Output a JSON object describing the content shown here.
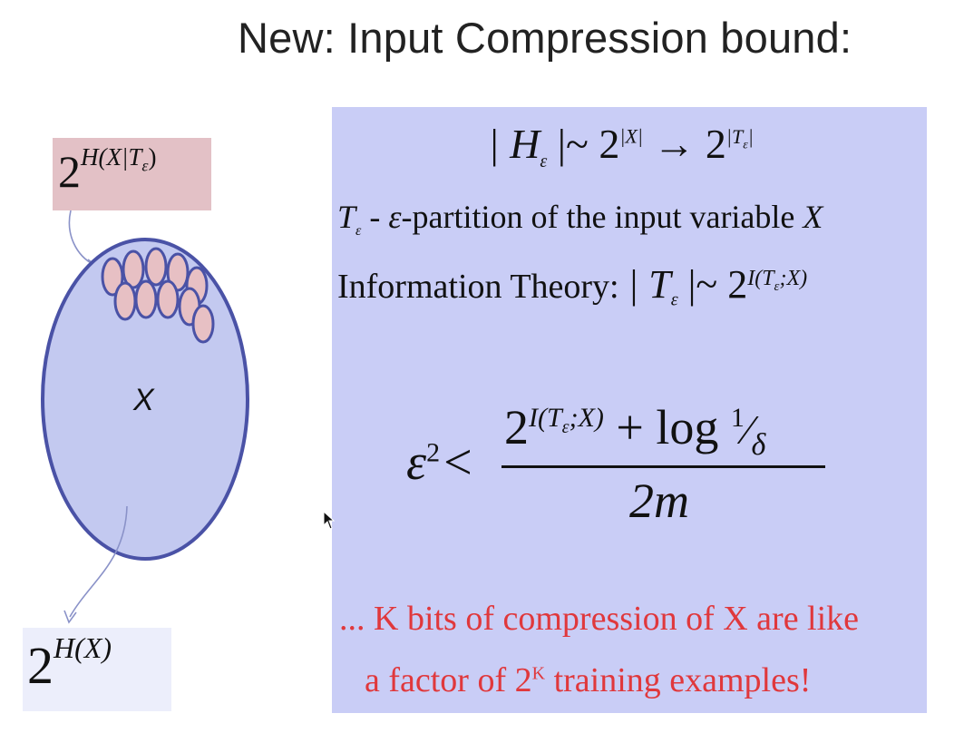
{
  "title": "New: Input Compression bound:",
  "left_diagram": {
    "top_label": {
      "base": "2",
      "exponent": "H(X|T",
      "exponent_sub": "ε",
      "exponent_close": ")"
    },
    "ellipse_label": "X",
    "bottom_label": {
      "base": "2",
      "exponent": "H(X)"
    },
    "colors": {
      "ellipse_fill": "#c3c9f0",
      "ellipse_stroke": "#4a52a6",
      "cell_fill": "#e7c0c4",
      "top_box": "#e3c1c6",
      "bottom_box": "#eceefb",
      "arrow": "#8a92c8"
    }
  },
  "panel": {
    "background": "#c9cdf6",
    "line1": {
      "lhs": "| H",
      "lhs_sub": "ε",
      "mid": " |~ 2",
      "exp1": "|X|",
      "arrow": " → 2",
      "exp2": "|T",
      "exp2_sub": "ε",
      "exp2_close": "|"
    },
    "line2": {
      "var": "T",
      "var_sub": "ε",
      "dash": " - ",
      "eps": "ε",
      "text": "-partition of the input variable ",
      "x": "X"
    },
    "line3": {
      "text": "Information Theory: ",
      "lhs": "| T",
      "lhs_sub": "ε",
      "mid": " |~ 2",
      "exp": "I(T",
      "exp_sub": "ε",
      "exp_close": ";X)"
    },
    "inequality": {
      "lhs": "ε",
      "lhs_sup": "2",
      "lt": "<",
      "num_base": "2",
      "num_exp": "I(T",
      "num_exp_sub": "ε",
      "num_exp_close": ";X)",
      "num_plus": " + log ",
      "num_one": "1",
      "num_slash": "⁄",
      "num_delta": "δ",
      "den": "2m"
    },
    "note_line1": "... K bits of compression of X are like",
    "note_line2_a": "a factor of  2",
    "note_line2_sup": "K",
    "note_line2_b": "  training examples!",
    "note_color": "#e0383c"
  }
}
